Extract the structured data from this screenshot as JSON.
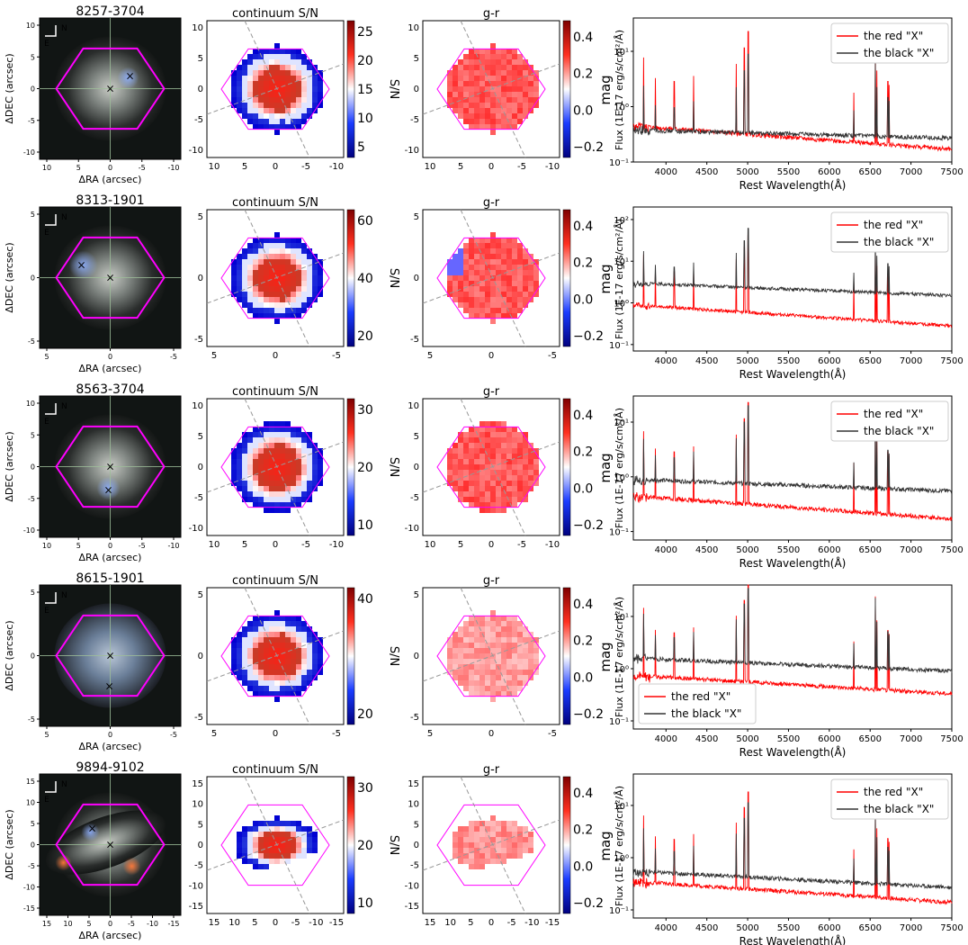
{
  "figure": {
    "column_titles": {
      "sn": "continuum S/N",
      "gr": "g-r"
    },
    "image_axes": {
      "xlabel": "ΔRA (arcsec)",
      "ylabel": "ΔDEC (arcsec)",
      "north": "N",
      "east": "E"
    },
    "sn_colorbar_label": "S/N",
    "gr_colorbar_label": "mag",
    "gr_colorbar_ticks": [
      "0.4",
      "0.2",
      "0.0",
      "−0.2"
    ],
    "spectrum_axes": {
      "xlabel": "Rest Wavelength(Å)",
      "ylabel": "Flux (1E-17 erg/s/cm²/Å)"
    },
    "legend": {
      "red": "the red \"X\"",
      "black": "the black \"X\""
    },
    "colors": {
      "red_spectrum": "#ff0000",
      "black_spectrum": "#333333",
      "hexagon": "#ff00ff",
      "cross_red": "#ff0000",
      "cross_black": "#000000"
    }
  },
  "chart_data": [
    {
      "id": "8257-3704",
      "type": "composite-row",
      "image_ticks": [
        "10",
        "5",
        "0",
        "-5",
        "-10"
      ],
      "image_yticks": [
        "10",
        "5",
        "0",
        "-5",
        "-10"
      ],
      "map_xticks": [
        "10",
        "5",
        "0",
        "-5",
        "-10"
      ],
      "map_yticks": [
        "10",
        "5",
        "0",
        "-5",
        "-10"
      ],
      "sn_colorbar_ticks": [
        "25",
        "20",
        "15",
        "10",
        "5"
      ],
      "spectrum": {
        "type": "line",
        "xlim": [
          3600,
          7500
        ],
        "xticks": [
          "4000",
          "4500",
          "5000",
          "5500",
          "6000",
          "6500",
          "7000",
          "7500"
        ],
        "yscale": "log",
        "ylim": [
          0.1,
          40
        ],
        "yticks": [
          "10¹",
          "10⁰",
          "10⁻¹"
        ],
        "legend_position": "top-right",
        "series": [
          {
            "name": "the red \"X\"",
            "continuum_start": 0.45,
            "continuum_end": 0.17
          },
          {
            "name": "the black \"X\"",
            "continuum_start": 0.38,
            "continuum_end": 0.27
          }
        ]
      }
    },
    {
      "id": "8313-1901",
      "type": "composite-row",
      "image_ticks": [
        "5",
        "0",
        "-5"
      ],
      "image_yticks": [
        "5",
        "0",
        "-5"
      ],
      "map_xticks": [
        "5",
        "0",
        "-5"
      ],
      "map_yticks": [
        "5",
        "0",
        "-5"
      ],
      "sn_colorbar_ticks": [
        "60",
        "40",
        "20"
      ],
      "spectrum": {
        "type": "line",
        "xlim": [
          3600,
          7500
        ],
        "xticks": [
          "4000",
          "4500",
          "5000",
          "5500",
          "6000",
          "6500",
          "7000",
          "7500"
        ],
        "yscale": "log",
        "ylim": [
          0.07,
          200
        ],
        "yticks": [
          "10²",
          "10¹",
          "10⁰",
          "10⁻¹"
        ],
        "legend_position": "top-right",
        "series": [
          {
            "name": "the red \"X\"",
            "continuum_start": 0.9,
            "continuum_end": 0.28
          },
          {
            "name": "the black \"X\"",
            "continuum_start": 3.0,
            "continuum_end": 1.5
          }
        ]
      }
    },
    {
      "id": "8563-3704",
      "type": "composite-row",
      "image_ticks": [
        "10",
        "5",
        "0",
        "-5",
        "-10"
      ],
      "image_yticks": [
        "10",
        "5",
        "0",
        "-5",
        "-10"
      ],
      "map_xticks": [
        "10",
        "5",
        "0",
        "-5",
        "-10"
      ],
      "map_yticks": [
        "10",
        "5",
        "0",
        "-5",
        "-10"
      ],
      "sn_colorbar_ticks": [
        "30",
        "20",
        "10"
      ],
      "spectrum": {
        "type": "line",
        "xlim": [
          3600,
          7500
        ],
        "xticks": [
          "4000",
          "4500",
          "5000",
          "5500",
          "6000",
          "6500",
          "7000",
          "7500"
        ],
        "yscale": "log",
        "ylim": [
          0.07,
          30
        ],
        "yticks": [
          "10¹",
          "10⁰",
          "10⁻¹"
        ],
        "legend_position": "top-right",
        "series": [
          {
            "name": "the red \"X\"",
            "continuum_start": 0.45,
            "continuum_end": 0.17
          },
          {
            "name": "the black \"X\"",
            "continuum_start": 0.9,
            "continuum_end": 0.55
          }
        ]
      }
    },
    {
      "id": "8615-1901",
      "type": "composite-row",
      "image_ticks": [
        "5",
        "0",
        "-5"
      ],
      "image_yticks": [
        "5",
        "0",
        "-5"
      ],
      "map_xticks": [
        "5",
        "0",
        "-5"
      ],
      "map_yticks": [
        "5",
        "0",
        "-5"
      ],
      "sn_colorbar_ticks": [
        "40",
        "20"
      ],
      "spectrum": {
        "type": "line",
        "xlim": [
          3600,
          7500
        ],
        "xticks": [
          "4000",
          "4500",
          "5000",
          "5500",
          "6000",
          "6500",
          "7000",
          "7500"
        ],
        "yscale": "log",
        "ylim": [
          0.07,
          40
        ],
        "yticks": [
          "10¹",
          "10⁰",
          "10⁻¹"
        ],
        "legend_position": "bottom-left",
        "series": [
          {
            "name": "the red \"X\"",
            "continuum_start": 0.75,
            "continuum_end": 0.33
          },
          {
            "name": "the black \"X\"",
            "continuum_start": 1.6,
            "continuum_end": 0.9
          }
        ]
      }
    },
    {
      "id": "9894-9102",
      "type": "composite-row",
      "image_ticks": [
        "15",
        "10",
        "5",
        "0",
        "-5",
        "-10",
        "-15"
      ],
      "image_yticks": [
        "15",
        "10",
        "5",
        "0",
        "-5",
        "-10",
        "-15"
      ],
      "map_xticks": [
        "15",
        "10",
        "5",
        "0",
        "-5",
        "-10",
        "-15"
      ],
      "map_yticks": [
        "15",
        "10",
        "5",
        "0",
        "-5",
        "-10",
        "-15"
      ],
      "sn_colorbar_ticks": [
        "30",
        "20",
        "10"
      ],
      "spectrum": {
        "type": "line",
        "xlim": [
          3600,
          7500
        ],
        "xticks": [
          "4000",
          "4500",
          "5000",
          "5500",
          "6000",
          "6500",
          "7000",
          "7500"
        ],
        "yscale": "log",
        "ylim": [
          0.07,
          40
        ],
        "yticks": [
          "10¹",
          "10⁰",
          "10⁻¹"
        ],
        "legend_position": "top-right",
        "series": [
          {
            "name": "the red \"X\"",
            "continuum_start": 0.35,
            "continuum_end": 0.14
          },
          {
            "name": "the black \"X\"",
            "continuum_start": 0.55,
            "continuum_end": 0.27
          }
        ]
      }
    }
  ]
}
